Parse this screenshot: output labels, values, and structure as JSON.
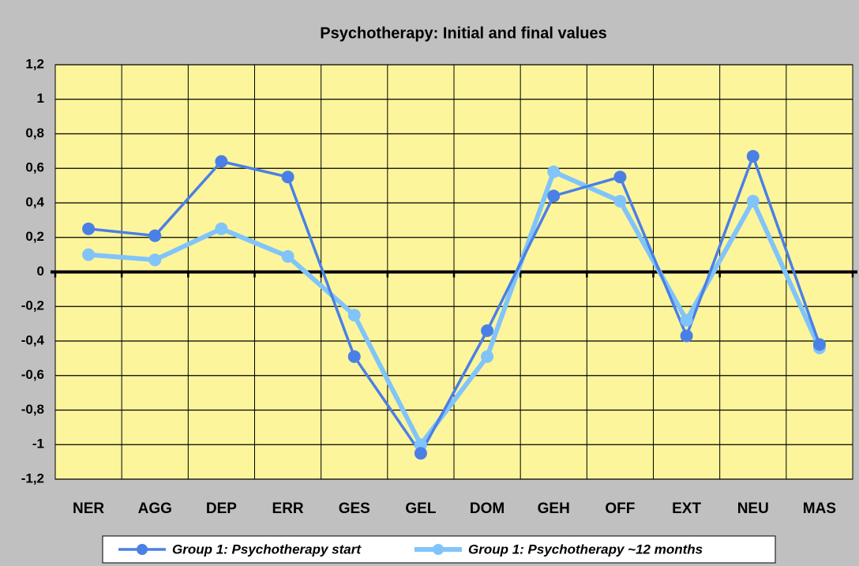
{
  "chart_data": {
    "type": "line",
    "title": "Psychotherapy: Initial and final values",
    "categories": [
      "NER",
      "AGG",
      "DEP",
      "ERR",
      "GES",
      "GEL",
      "DOM",
      "GEH",
      "OFF",
      "EXT",
      "NEU",
      "MAS"
    ],
    "series": [
      {
        "name": "Group 1: Psychotherapy start",
        "color": "#4a80e6",
        "values": [
          0.25,
          0.21,
          0.64,
          0.55,
          -0.49,
          -1.05,
          -0.34,
          0.44,
          0.55,
          -0.37,
          0.67,
          -0.42
        ]
      },
      {
        "name": "Group 1: Psychotherapy ~12 months",
        "color": "#80c4fa",
        "values": [
          0.1,
          0.07,
          0.25,
          0.09,
          -0.25,
          -1.0,
          -0.49,
          0.58,
          0.41,
          -0.28,
          0.41,
          -0.44
        ]
      }
    ],
    "ylim": [
      -1.2,
      1.2
    ],
    "yticks": [
      {
        "value": -1.2,
        "label": "-1,2"
      },
      -1,
      {
        "value": -0.8,
        "label": "-0,8"
      },
      {
        "value": -0.6,
        "label": "-0,6"
      },
      {
        "value": -0.4,
        "label": "-0,4"
      },
      {
        "value": -0.2,
        "label": "-0,2"
      },
      0,
      {
        "value": 0.2,
        "label": "0,2"
      },
      {
        "value": 0.4,
        "label": "0,4"
      },
      {
        "value": 0.6,
        "label": "0,6"
      },
      {
        "value": 0.8,
        "label": "0,8"
      },
      1,
      {
        "value": 1.2,
        "label": "1,2"
      }
    ],
    "grid": true,
    "plot_color": "#fdf59c"
  }
}
